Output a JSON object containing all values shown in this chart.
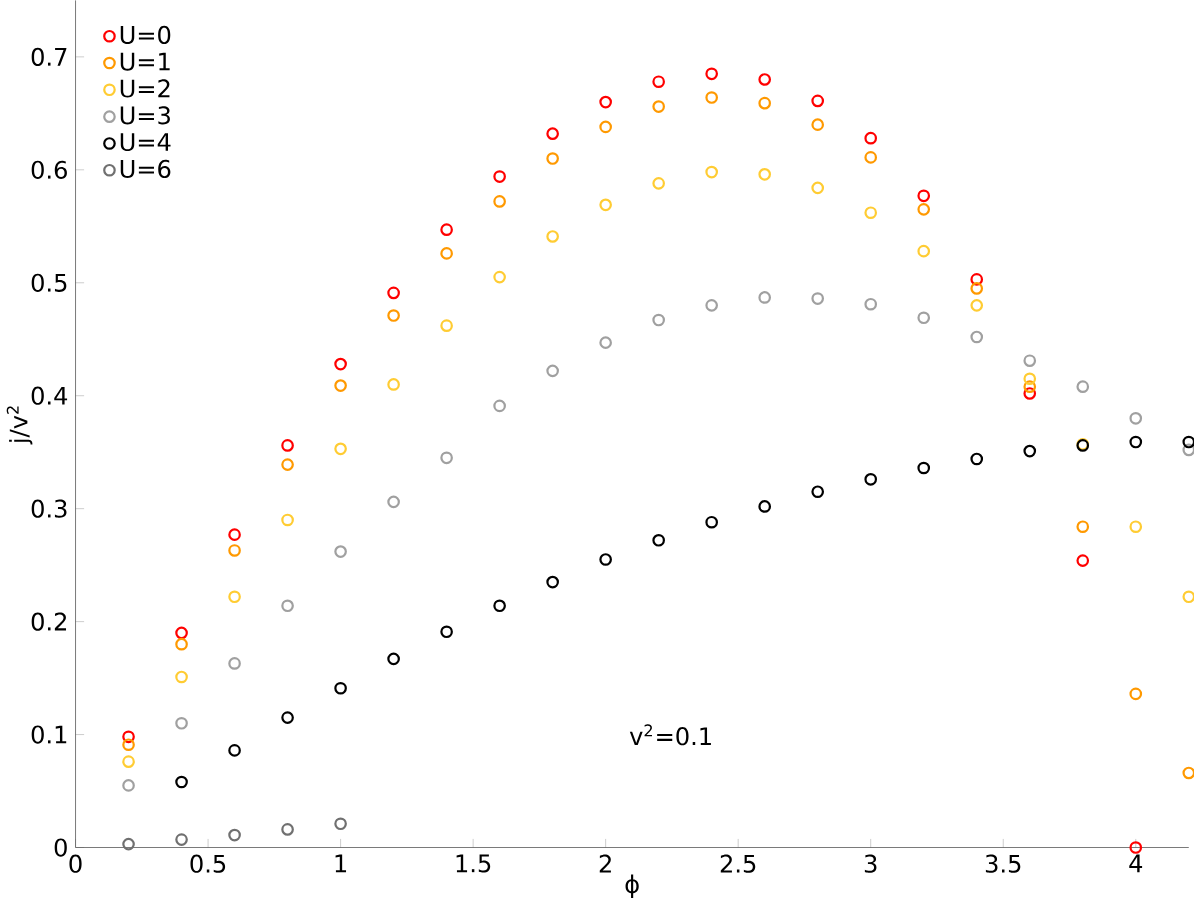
{
  "chart_data": {
    "type": "scatter",
    "xlabel": "ϕ",
    "ylabel": "j/v$^{2}$",
    "xlim": [
      0,
      4.2
    ],
    "ylim": [
      0,
      0.75
    ],
    "xticks": [
      0,
      0.5,
      1,
      1.5,
      2,
      2.5,
      3,
      3.5,
      4
    ],
    "yticks": [
      0,
      0.1,
      0.2,
      0.3,
      0.4,
      0.5,
      0.6,
      0.7
    ],
    "marker": "circle",
    "legend": "top left",
    "grid": false,
    "annotations": [
      "v$^{2}$=0.1"
    ],
    "series": [
      {
        "name": "U=0",
        "color": "#ff0000",
        "x": [
          0.2,
          0.4,
          0.6,
          0.8,
          1.0,
          1.2,
          1.4,
          1.6,
          1.8,
          2.0,
          2.2,
          2.4,
          2.6,
          2.8,
          3.0,
          3.2,
          3.4,
          3.6,
          3.8,
          4.0
        ],
        "values": [
          0.098,
          0.19,
          0.277,
          0.356,
          0.428,
          0.491,
          0.547,
          0.594,
          0.632,
          0.66,
          0.678,
          0.685,
          0.68,
          0.661,
          0.628,
          0.577,
          0.503,
          0.402,
          0.254,
          0.0
        ]
      },
      {
        "name": "U=1",
        "color": "#ff9900",
        "x": [
          0.2,
          0.4,
          0.6,
          0.8,
          1.0,
          1.2,
          1.4,
          1.6,
          1.8,
          2.0,
          2.2,
          2.4,
          2.6,
          2.8,
          3.0,
          3.2,
          3.4,
          3.6,
          3.8,
          4.0,
          4.2
        ],
        "values": [
          0.091,
          0.18,
          0.263,
          0.339,
          0.409,
          0.471,
          0.526,
          0.572,
          0.61,
          0.638,
          0.656,
          0.664,
          0.659,
          0.64,
          0.611,
          0.565,
          0.495,
          0.408,
          0.284,
          0.136,
          0.066
        ]
      },
      {
        "name": "U=2",
        "color": "#ffcc33",
        "x": [
          0.2,
          0.4,
          0.6,
          0.8,
          1.0,
          1.2,
          1.4,
          1.6,
          1.8,
          2.0,
          2.2,
          2.4,
          2.6,
          2.8,
          3.0,
          3.2,
          3.4,
          3.6,
          3.8,
          4.0,
          4.2
        ],
        "values": [
          0.076,
          0.151,
          0.222,
          0.29,
          0.353,
          0.41,
          0.462,
          0.505,
          0.541,
          0.569,
          0.588,
          0.598,
          0.596,
          0.584,
          0.562,
          0.528,
          0.48,
          0.415,
          0.357,
          0.284,
          0.222
        ]
      },
      {
        "name": "U=3",
        "color": "#a0a0a0",
        "x": [
          0.2,
          0.4,
          0.6,
          0.8,
          1.0,
          1.2,
          1.4,
          1.6,
          1.8,
          2.0,
          2.2,
          2.4,
          2.6,
          2.8,
          3.0,
          3.2,
          3.4,
          3.6,
          3.8,
          4.0,
          4.2
        ],
        "values": [
          0.055,
          0.11,
          0.163,
          0.214,
          0.262,
          0.306,
          0.345,
          0.391,
          0.422,
          0.447,
          0.467,
          0.48,
          0.487,
          0.486,
          0.481,
          0.469,
          0.452,
          0.431,
          0.408,
          0.38,
          0.352
        ]
      },
      {
        "name": "U=4",
        "color": "#000000",
        "x": [
          0.4,
          0.6,
          0.8,
          1.0,
          1.2,
          1.4,
          1.6,
          1.8,
          2.0,
          2.2,
          2.4,
          2.6,
          2.8,
          3.0,
          3.2,
          3.4,
          3.6,
          3.8,
          4.0,
          4.2
        ],
        "values": [
          0.058,
          0.086,
          0.115,
          0.141,
          0.167,
          0.191,
          0.214,
          0.235,
          0.255,
          0.272,
          0.288,
          0.302,
          0.315,
          0.326,
          0.336,
          0.344,
          0.351,
          0.356,
          0.359,
          0.359
        ]
      },
      {
        "name": "U=6",
        "color": "#707070",
        "x": [
          0.2,
          0.4,
          0.6,
          0.8,
          1.0
        ],
        "values": [
          0.003,
          0.007,
          0.011,
          0.016,
          0.021
        ]
      }
    ]
  }
}
